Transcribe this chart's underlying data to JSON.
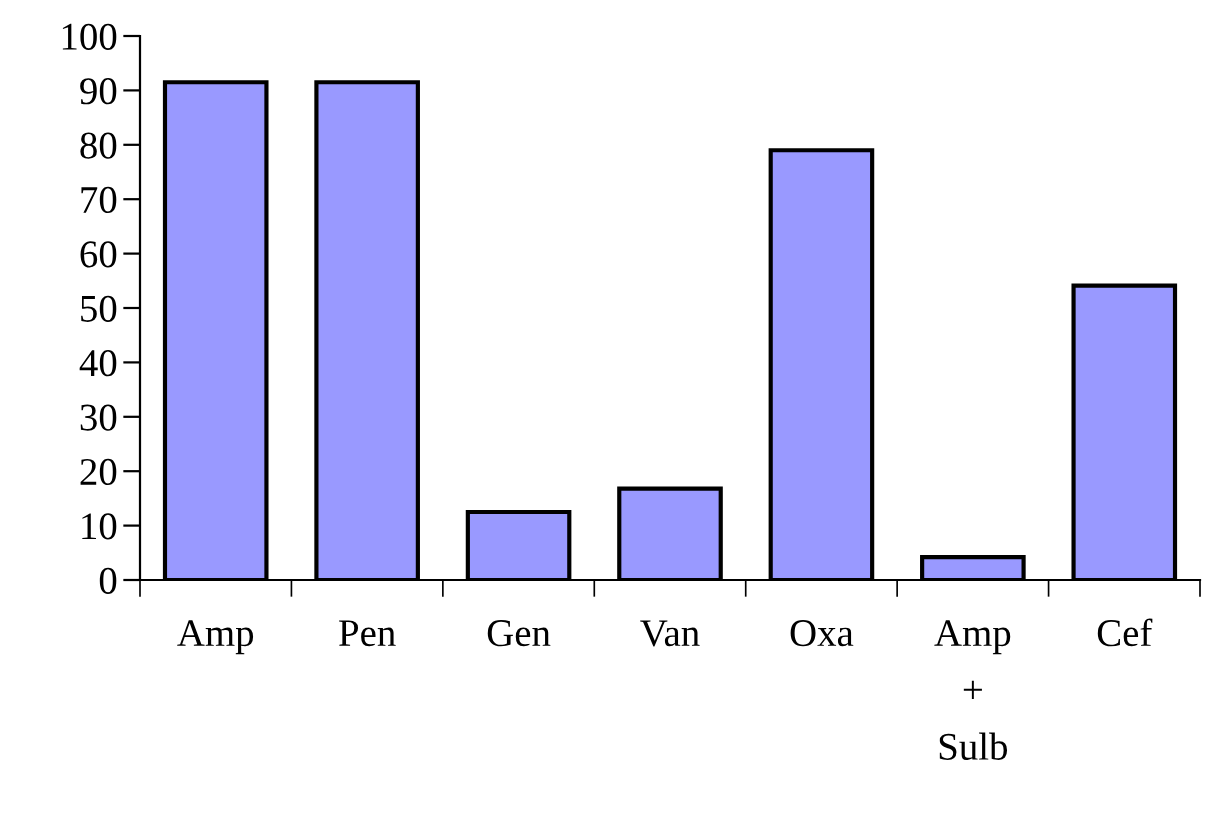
{
  "chart_data": {
    "type": "bar",
    "categories": [
      "Amp",
      "Pen",
      "Gen",
      "Van",
      "Oxa",
      "Amp\n+\nSulb",
      "Cef"
    ],
    "values": [
      91.5,
      91.5,
      12.5,
      16.8,
      79,
      4.2,
      54.1
    ],
    "color": "#9999ff",
    "ylim": [
      0,
      100
    ],
    "yticks": [
      0,
      10,
      20,
      30,
      40,
      50,
      60,
      70,
      80,
      90,
      100
    ],
    "grid": false,
    "legend": false
  }
}
